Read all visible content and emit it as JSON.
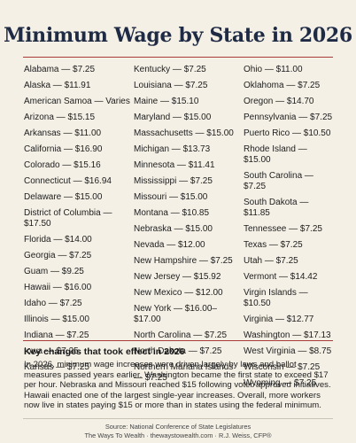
{
  "title": "Minimum Wage by State in 2026",
  "columns": [
    [
      "Alabama — $7.25",
      "Alaska — $11.91",
      "American Samoa — Varies",
      "Arizona — $15.15",
      "Arkansas — $11.00",
      "California — $16.90",
      "Colorado — $15.16",
      "Connecticut — $16.94",
      "Delaware — $15.00",
      "District of Columbia — $17.50",
      "Florida — $14.00",
      "Georgia — $7.25",
      "Guam — $9.25",
      "Hawaii — $16.00",
      "Idaho — $7.25",
      "Illinois — $15.00",
      "Indiana — $7.25",
      "Iowa — $7.25",
      "Kansas — $7.25"
    ],
    [
      "Kentucky — $7.25",
      "Louisiana — $7.25",
      "Maine — $15.10",
      "Maryland — $15.00",
      "Massachusetts — $15.00",
      "Michigan — $13.73",
      "Minnesota — $11.41",
      "Mississippi — $7.25",
      "Missouri — $15.00",
      "Montana — $10.85",
      "Nebraska — $15.00",
      "Nevada — $12.00",
      "New Hampshire — $7.25",
      "New Jersey — $15.92",
      "New Mexico — $12.00",
      "New York — $16.00–$17.00",
      "North Carolina — $7.25",
      "North Dakota — $7.25",
      "Northern Mariana Islands — $7.25"
    ],
    [
      "Ohio — $11.00",
      "Oklahoma — $7.25",
      "Oregon — $14.70",
      "Pennsylvania — $7.25",
      "Puerto Rico — $10.50",
      "Rhode Island — $15.00",
      "South Carolina — $7.25",
      "South Dakota — $11.85",
      "Tennessee — $7.25",
      "Texas — $7.25",
      "Utah — $7.25",
      "Vermont — $14.42",
      "Virgin Islands — $10.50",
      "Virginia — $12.77",
      "Washington — $17.13",
      "West Virginia — $8.75",
      "Wisconsin — $7.25",
      "Wyoming — $7.25"
    ]
  ],
  "key_changes": {
    "heading": "Key changes that took effect in 2026",
    "body": "In 2026, minimum wage increases were driven largely by laws and ballot measures passed years earlier. Washington became the first state to exceed $17 per hour. Nebraska and Missouri reached $15 following voter-approved initiatives. Hawaii enacted one of the largest single-year increases. Overall, more workers now live in states paying $15 or more than in states using the federal minimum."
  },
  "source": {
    "line1": "Source: National Conference of State Legislatures",
    "line2": "The Ways To Wealth · thewaystowealth.com · R.J. Weiss, CFP®"
  },
  "colors": {
    "title": "#1f2a44",
    "rule": "#a83a3a",
    "background": "#f4f0e6"
  }
}
